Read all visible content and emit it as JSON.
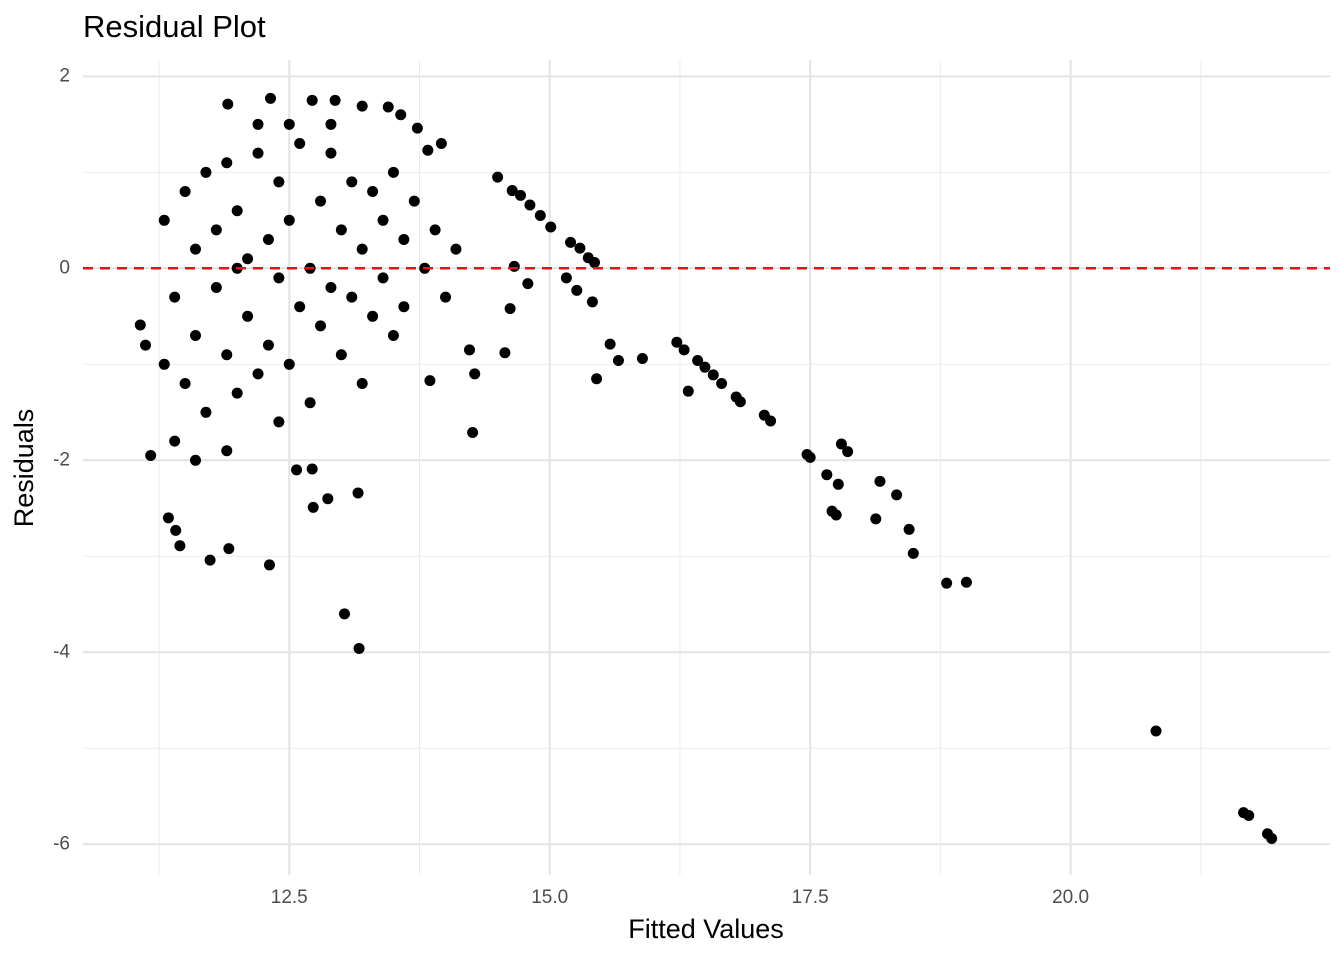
{
  "chart_data": {
    "type": "scatter",
    "title": "Residual Plot",
    "x_label": "Fitted Values",
    "y_label": "Residuals",
    "color": "#000000",
    "x": [
      21.93,
      21.89,
      21.71,
      21.66,
      20.82,
      19.0,
      18.81,
      18.49,
      18.45,
      18.33,
      18.17,
      18.13,
      17.86,
      17.8,
      17.77,
      17.66,
      17.75,
      17.71,
      17.5,
      17.47,
      17.12,
      17.06,
      16.83,
      16.79,
      16.65,
      16.57,
      16.49,
      16.42,
      16.33,
      16.29,
      16.22,
      15.89,
      15.66,
      15.58,
      15.45,
      15.41,
      15.43,
      15.37,
      15.29,
      15.2,
      15.26,
      15.16,
      15.01,
      14.91,
      14.81,
      14.72,
      14.64,
      14.5,
      14.79,
      14.66,
      14.57,
      14.62,
      14.26,
      14.28,
      13.96,
      13.83,
      13.73,
      13.57,
      13.45,
      13.2,
      12.94,
      12.72,
      12.32,
      11.91,
      13.03,
      13.17,
      13.16,
      12.31,
      11.74,
      11.45,
      11.92,
      12.73,
      12.87,
      12.57,
      12.72,
      11.07,
      11.12,
      11.17,
      11.41,
      11.34,
      13.85,
      14.23,
      11.3,
      11.4,
      11.5,
      11.5,
      11.6,
      11.6,
      11.7,
      11.7,
      11.8,
      11.8,
      11.9,
      11.9,
      12.0,
      12.0,
      12.1,
      12.1,
      12.2,
      12.2,
      12.3,
      12.3,
      12.4,
      12.4,
      12.5,
      12.5,
      12.6,
      12.6,
      12.7,
      12.7,
      12.8,
      12.8,
      12.9,
      12.9,
      13.0,
      13.0,
      13.1,
      13.1,
      13.2,
      13.2,
      13.3,
      13.3,
      13.4,
      13.4,
      13.5,
      13.5,
      13.6,
      13.6,
      13.7,
      13.8,
      13.9,
      14.0,
      14.1,
      11.4,
      11.6,
      11.9,
      12.2,
      12.5,
      12.9,
      11.3,
      12.0,
      12.4
    ],
    "values": [
      -5.94,
      -5.89,
      -5.7,
      -5.67,
      -4.82,
      -3.27,
      -3.28,
      -2.97,
      -2.72,
      -2.36,
      -2.22,
      -2.61,
      -1.91,
      -1.83,
      -2.25,
      -2.15,
      -2.57,
      -2.53,
      -1.97,
      -1.94,
      -1.59,
      -1.53,
      -1.39,
      -1.34,
      -1.2,
      -1.11,
      -1.03,
      -0.96,
      -1.28,
      -0.85,
      -0.77,
      -0.94,
      -0.96,
      -0.79,
      -1.15,
      -0.35,
      0.06,
      0.11,
      0.21,
      0.27,
      -0.23,
      -0.1,
      0.43,
      0.55,
      0.66,
      0.76,
      0.81,
      0.95,
      -0.16,
      0.02,
      -0.88,
      -0.42,
      -1.71,
      -1.1,
      1.3,
      1.23,
      1.46,
      1.6,
      1.68,
      1.69,
      1.75,
      1.75,
      1.77,
      1.71,
      -3.6,
      -3.96,
      -2.34,
      -3.09,
      -3.04,
      -2.89,
      -2.92,
      -2.49,
      -2.4,
      -2.1,
      -2.09,
      -0.59,
      -0.8,
      -1.95,
      -2.73,
      -2.6,
      -1.17,
      -0.85,
      0.5,
      -0.3,
      0.8,
      -1.2,
      0.2,
      -0.7,
      1.0,
      -1.5,
      0.4,
      -0.2,
      1.1,
      -0.9,
      0.6,
      -1.3,
      0.1,
      -0.5,
      1.2,
      -1.1,
      0.3,
      -0.8,
      0.9,
      -0.1,
      0.5,
      -1.0,
      1.3,
      -0.4,
      0.0,
      -1.4,
      0.7,
      -0.6,
      1.2,
      -0.2,
      0.4,
      -0.9,
      0.9,
      -0.3,
      0.2,
      -1.2,
      0.8,
      -0.5,
      0.5,
      -0.1,
      1.0,
      -0.7,
      0.3,
      -0.4,
      0.7,
      0.0,
      0.4,
      -0.3,
      0.2,
      -1.8,
      -2.0,
      -1.9,
      1.5,
      1.5,
      1.5,
      -1.0,
      0.0,
      -1.6
    ],
    "xlim": [
      10.52,
      22.49
    ],
    "ylim": [
      -6.32,
      2.17
    ],
    "xticks": [
      12.5,
      {
        "value": 15,
        "label": "15.0"
      },
      17.5,
      {
        "value": 20,
        "label": "20.0"
      }
    ],
    "yticks": [
      -6,
      -4,
      -2,
      0,
      2
    ],
    "xminor": [
      11.25,
      13.75,
      16.25,
      18.75,
      21.25
    ],
    "yminor": [
      -5,
      -3,
      -1,
      1
    ],
    "reference_line": {
      "y": 0,
      "color": "#e8101a"
    },
    "grid": true
  }
}
